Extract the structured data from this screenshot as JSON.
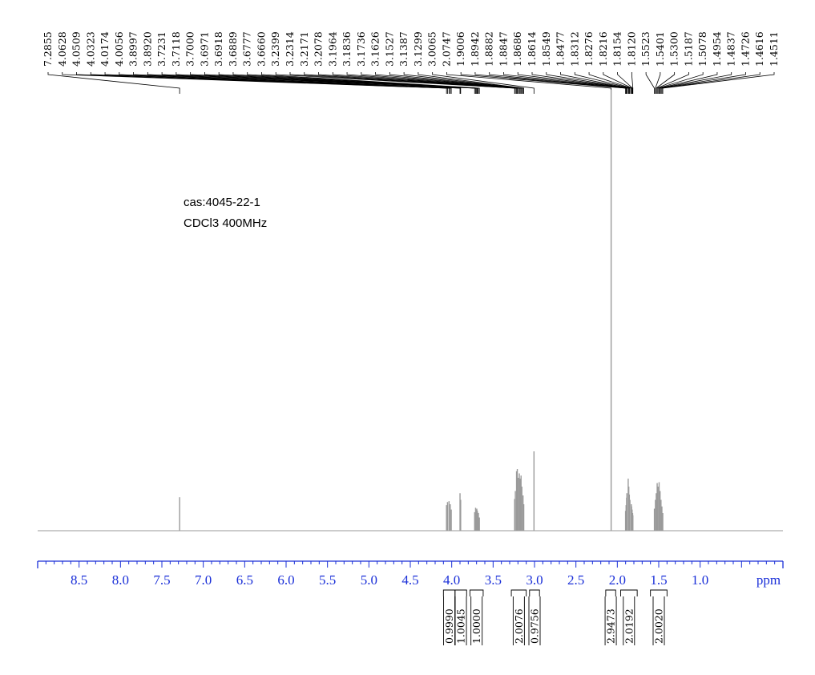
{
  "annotations": {
    "cas": "cas:4045-22-1",
    "conditions": "CDCl3  400MHz"
  },
  "chart_data": {
    "type": "line",
    "title": "",
    "xlabel": "ppm",
    "ylabel": "",
    "x_reversed": true,
    "xlim": [
      9.0,
      0.0
    ],
    "grid": false,
    "x_ticks": [
      {
        "value": 8.5,
        "label": "8.5"
      },
      {
        "value": 8.0,
        "label": "8.0"
      },
      {
        "value": 7.5,
        "label": "7.5"
      },
      {
        "value": 7.0,
        "label": "7.0"
      },
      {
        "value": 6.5,
        "label": "6.5"
      },
      {
        "value": 6.0,
        "label": "6.0"
      },
      {
        "value": 5.5,
        "label": "5.5"
      },
      {
        "value": 5.0,
        "label": "5.0"
      },
      {
        "value": 4.5,
        "label": "4.5"
      },
      {
        "value": 4.0,
        "label": "4.0"
      },
      {
        "value": 3.5,
        "label": "3.5"
      },
      {
        "value": 3.0,
        "label": "3.0"
      },
      {
        "value": 2.5,
        "label": "2.5"
      },
      {
        "value": 2.0,
        "label": "2.0"
      },
      {
        "value": 1.5,
        "label": "1.5"
      },
      {
        "value": 1.0,
        "label": "1.0"
      }
    ],
    "peak_labels": [
      "7.2855",
      "4.0628",
      "4.0509",
      "4.0323",
      "4.0174",
      "4.0056",
      "3.8997",
      "3.8920",
      "3.7231",
      "3.7118",
      "3.7000",
      "3.6971",
      "3.6918",
      "3.6889",
      "3.6777",
      "3.6660",
      "3.2399",
      "3.2314",
      "3.2171",
      "3.2078",
      "3.1964",
      "3.1836",
      "3.1736",
      "3.1626",
      "3.1527",
      "3.1387",
      "3.1299",
      "3.0065",
      "2.0747",
      "1.9006",
      "1.8942",
      "1.8882",
      "1.8847",
      "1.8686",
      "1.8614",
      "1.8549",
      "1.8477",
      "1.8312",
      "1.8276",
      "1.8216",
      "1.8154",
      "1.8120",
      "1.5523",
      "1.5401",
      "1.5300",
      "1.5187",
      "1.5078",
      "1.4954",
      "1.4837",
      "1.4726",
      "1.4616",
      "1.4511"
    ],
    "peaks": [
      {
        "ppm": 7.2855,
        "height": 0.076
      },
      {
        "ppm": 4.0628,
        "height": 0.058
      },
      {
        "ppm": 4.0509,
        "height": 0.065
      },
      {
        "ppm": 4.0323,
        "height": 0.067
      },
      {
        "ppm": 4.0174,
        "height": 0.06
      },
      {
        "ppm": 4.0056,
        "height": 0.048
      },
      {
        "ppm": 3.8997,
        "height": 0.085
      },
      {
        "ppm": 3.892,
        "height": 0.07
      },
      {
        "ppm": 3.7231,
        "height": 0.042
      },
      {
        "ppm": 3.7118,
        "height": 0.052
      },
      {
        "ppm": 3.7,
        "height": 0.048
      },
      {
        "ppm": 3.6971,
        "height": 0.05
      },
      {
        "ppm": 3.6918,
        "height": 0.046
      },
      {
        "ppm": 3.6889,
        "height": 0.043
      },
      {
        "ppm": 3.6777,
        "height": 0.04
      },
      {
        "ppm": 3.666,
        "height": 0.03
      },
      {
        "ppm": 3.2399,
        "height": 0.072
      },
      {
        "ppm": 3.2314,
        "height": 0.09
      },
      {
        "ppm": 3.2171,
        "height": 0.135
      },
      {
        "ppm": 3.2078,
        "height": 0.14
      },
      {
        "ppm": 3.1964,
        "height": 0.12
      },
      {
        "ppm": 3.1836,
        "height": 0.13
      },
      {
        "ppm": 3.1736,
        "height": 0.118
      },
      {
        "ppm": 3.1626,
        "height": 0.125
      },
      {
        "ppm": 3.1527,
        "height": 0.1
      },
      {
        "ppm": 3.1387,
        "height": 0.08
      },
      {
        "ppm": 3.1299,
        "height": 0.06
      },
      {
        "ppm": 3.0065,
        "height": 0.18
      },
      {
        "ppm": 2.0747,
        "height": 1.0
      },
      {
        "ppm": 1.9006,
        "height": 0.045
      },
      {
        "ppm": 1.8942,
        "height": 0.058
      },
      {
        "ppm": 1.8882,
        "height": 0.075
      },
      {
        "ppm": 1.8847,
        "height": 0.085
      },
      {
        "ppm": 1.8686,
        "height": 0.118
      },
      {
        "ppm": 1.8614,
        "height": 0.1
      },
      {
        "ppm": 1.8549,
        "height": 0.082
      },
      {
        "ppm": 1.8477,
        "height": 0.07
      },
      {
        "ppm": 1.8312,
        "height": 0.06
      },
      {
        "ppm": 1.8276,
        "height": 0.055
      },
      {
        "ppm": 1.8216,
        "height": 0.048
      },
      {
        "ppm": 1.8154,
        "height": 0.04
      },
      {
        "ppm": 1.812,
        "height": 0.035
      },
      {
        "ppm": 1.5523,
        "height": 0.05
      },
      {
        "ppm": 1.5401,
        "height": 0.07
      },
      {
        "ppm": 1.53,
        "height": 0.085
      },
      {
        "ppm": 1.5187,
        "height": 0.108
      },
      {
        "ppm": 1.5078,
        "height": 0.1
      },
      {
        "ppm": 1.4954,
        "height": 0.11
      },
      {
        "ppm": 1.4837,
        "height": 0.09
      },
      {
        "ppm": 1.4726,
        "height": 0.07
      },
      {
        "ppm": 1.4616,
        "height": 0.055
      },
      {
        "ppm": 1.4511,
        "height": 0.04
      }
    ],
    "integrals": [
      {
        "from": 4.1,
        "to": 3.96,
        "value": "0.9990"
      },
      {
        "from": 3.96,
        "to": 3.82,
        "value": "1.0045"
      },
      {
        "from": 3.78,
        "to": 3.62,
        "value": "1.0000"
      },
      {
        "from": 3.28,
        "to": 3.1,
        "value": "2.0076"
      },
      {
        "from": 3.06,
        "to": 2.94,
        "value": "0.9756"
      },
      {
        "from": 2.14,
        "to": 2.02,
        "value": "2.9473"
      },
      {
        "from": 1.96,
        "to": 1.76,
        "value": "2.0192"
      },
      {
        "from": 1.6,
        "to": 1.4,
        "value": "2.0020"
      }
    ]
  },
  "colors": {
    "axis": "#1a2fd8",
    "spectrum": "#9a9a9a",
    "label_text": "#000000"
  }
}
